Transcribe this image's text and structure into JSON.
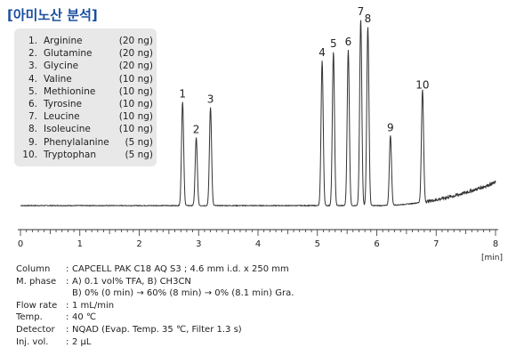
{
  "title": "[아미노산 분석]",
  "legend": [
    {
      "num": "1.",
      "name": "Arginine",
      "amount": "(20 ng)"
    },
    {
      "num": "2.",
      "name": "Glutamine",
      "amount": "(20 ng)"
    },
    {
      "num": "3.",
      "name": "Glycine",
      "amount": "(20 ng)"
    },
    {
      "num": "4.",
      "name": "Valine",
      "amount": "(10 ng)"
    },
    {
      "num": "5.",
      "name": "Methionine",
      "amount": "(10 ng)"
    },
    {
      "num": "6.",
      "name": "Tyrosine",
      "amount": "(10 ng)"
    },
    {
      "num": "7.",
      "name": "Leucine",
      "amount": "(10 ng)"
    },
    {
      "num": "8.",
      "name": "Isoleucine",
      "amount": "(10 ng)"
    },
    {
      "num": "9.",
      "name": "Phenylalanine",
      "amount": "(5 ng)"
    },
    {
      "num": "10.",
      "name": "Tryptophan",
      "amount": "(5 ng)"
    }
  ],
  "chart_data": {
    "type": "line",
    "xlabel": "[min]",
    "xlim": [
      0,
      8
    ],
    "xticks": [
      "0",
      "1",
      "2",
      "3",
      "4",
      "5",
      "6",
      "7",
      "8"
    ],
    "grid": false,
    "peaks": [
      {
        "label": "1",
        "rt": 2.73,
        "height": 0.58
      },
      {
        "label": "2",
        "rt": 2.96,
        "height": 0.38
      },
      {
        "label": "3",
        "rt": 3.2,
        "height": 0.55
      },
      {
        "label": "4",
        "rt": 5.08,
        "height": 0.81
      },
      {
        "label": "5",
        "rt": 5.27,
        "height": 0.86
      },
      {
        "label": "6",
        "rt": 5.52,
        "height": 0.87
      },
      {
        "label": "7",
        "rt": 5.73,
        "height": 1.04
      },
      {
        "label": "8",
        "rt": 5.85,
        "height": 1.0
      },
      {
        "label": "9",
        "rt": 6.23,
        "height": 0.39
      },
      {
        "label": "10",
        "rt": 6.77,
        "height": 0.63
      }
    ],
    "line_color": "#333333"
  },
  "conditions": [
    {
      "label": "Column",
      "value": "CAPCELL PAK C18 AQ S3 ; 4.6 mm i.d. x 250 mm"
    },
    {
      "label": "M. phase",
      "value": "A)  0.1 vol% TFA, B) CH3CN"
    },
    {
      "label": "",
      "value": "B)  0% (0 min) → 60% (8 min) → 0% (8.1 min) Gra."
    },
    {
      "label": "Flow rate",
      "value": "1 mL/min"
    },
    {
      "label": "Temp.",
      "value": "40 ℃"
    },
    {
      "label": "Detector",
      "value": "NQAD (Evap. Temp. 35 ℃, Filter 1.3 s)"
    },
    {
      "label": "Inj. vol.",
      "value": "2 μL"
    }
  ]
}
